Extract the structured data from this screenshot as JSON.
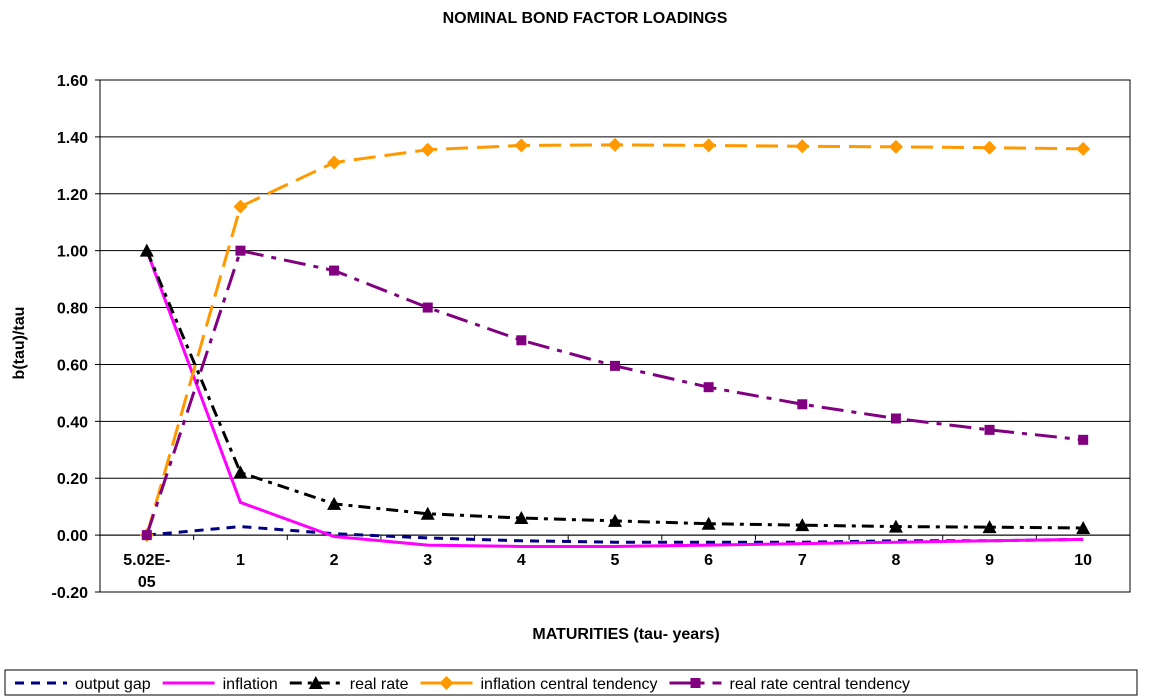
{
  "chart_data": {
    "type": "line",
    "title": "NOMINAL BOND FACTOR LOADINGS",
    "xlabel": "MATURITIES (tau- years)",
    "ylabel": "b(tau)/tau",
    "categories": [
      "5.02E-05",
      "1",
      "2",
      "3",
      "4",
      "5",
      "6",
      "7",
      "8",
      "9",
      "10"
    ],
    "ylim": [
      -0.2,
      1.6
    ],
    "yticks": [
      "-0.20",
      "0.00",
      "0.20",
      "0.40",
      "0.60",
      "0.80",
      "1.00",
      "1.20",
      "1.40",
      "1.60"
    ],
    "grid": true,
    "legend_position": "bottom",
    "series": [
      {
        "name": "output gap",
        "color": "#000080",
        "dash": "short-dash",
        "marker": "none",
        "values": [
          0.0,
          0.03,
          0.005,
          -0.01,
          -0.02,
          -0.025,
          -0.025,
          -0.025,
          -0.02,
          -0.02,
          -0.015
        ]
      },
      {
        "name": "inflation",
        "color": "#ff00ff",
        "dash": "solid",
        "marker": "none",
        "values": [
          1.0,
          0.115,
          -0.005,
          -0.035,
          -0.04,
          -0.04,
          -0.035,
          -0.03,
          -0.025,
          -0.02,
          -0.015
        ]
      },
      {
        "name": "real rate",
        "color": "#000000",
        "dash": "dash-dot",
        "marker": "triangle",
        "values": [
          1.0,
          0.22,
          0.11,
          0.075,
          0.06,
          0.05,
          0.04,
          0.035,
          0.03,
          0.028,
          0.025
        ]
      },
      {
        "name": "inflation central tendency",
        "color": "#ff9900",
        "dash": "long-dash",
        "marker": "diamond",
        "values": [
          0.0,
          1.155,
          1.31,
          1.355,
          1.37,
          1.372,
          1.37,
          1.367,
          1.365,
          1.362,
          1.358
        ]
      },
      {
        "name": "real rate central tendency",
        "color": "#800080",
        "dash": "long-dash-dot",
        "marker": "square",
        "values": [
          0.0,
          1.0,
          0.93,
          0.8,
          0.685,
          0.595,
          0.52,
          0.46,
          0.41,
          0.37,
          0.335
        ]
      }
    ]
  }
}
